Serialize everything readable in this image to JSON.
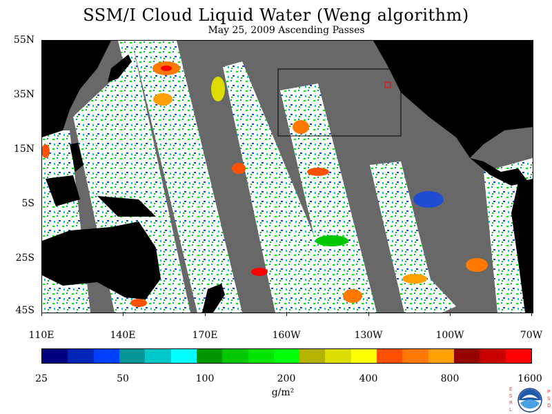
{
  "title": "SSM/I Cloud Liquid Water (Weng algorithm)",
  "subtitle": "May 25, 2009  Ascending Passes",
  "lat_labels": [
    "55N",
    "35N",
    "15N",
    "5S",
    "25S",
    "45S"
  ],
  "lon_labels": [
    "110E",
    "140E",
    "170E",
    "160W",
    "130W",
    "100W",
    "70W"
  ],
  "colorbar": {
    "colors": [
      "#00007f",
      "#0024b3",
      "#0040ff",
      "#009696",
      "#00c8c8",
      "#00ffff",
      "#009600",
      "#00c800",
      "#00e600",
      "#00ff00",
      "#b4b400",
      "#dcdc00",
      "#ffff00",
      "#ff5000",
      "#ff7800",
      "#ffa000",
      "#960000",
      "#c80000",
      "#ff0000"
    ],
    "labels": [
      "25",
      "50",
      "100",
      "200",
      "400",
      "800",
      "1600"
    ],
    "units": "g/m²"
  },
  "colors": {
    "swath_gap": "#686868",
    "land": "#000000",
    "no_cloud": "#ffffff",
    "box": "#000000",
    "marker": "#ff0000"
  },
  "logo": {
    "left": "E S R L",
    "right": "P S D",
    "center": "NOAA"
  }
}
